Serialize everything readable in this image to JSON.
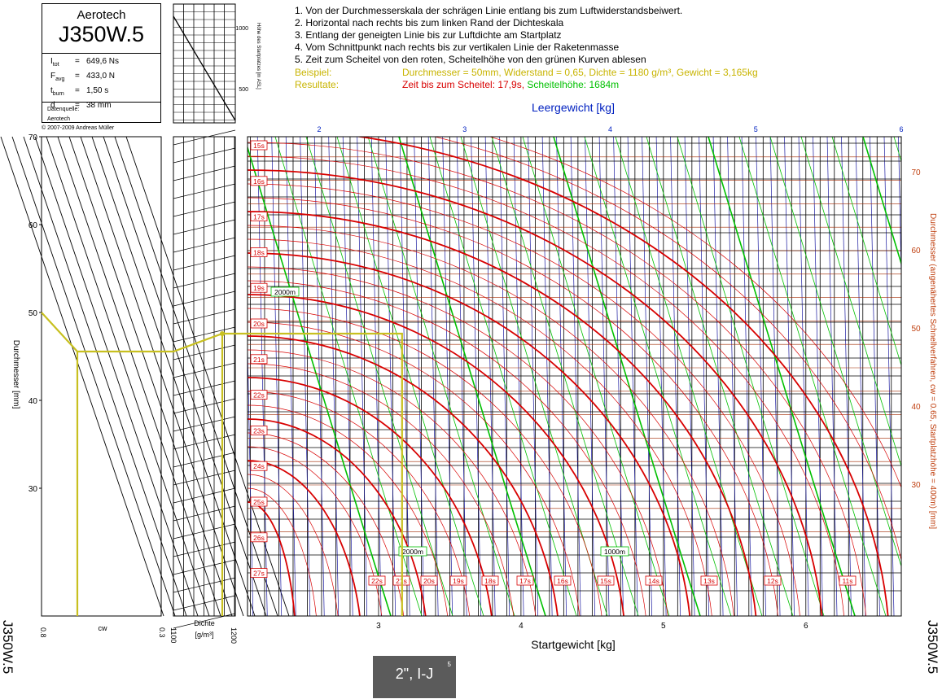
{
  "motor": {
    "manufacturer": "Aerotech",
    "designation": "J350W.5",
    "specs": [
      {
        "sym": "I",
        "sub": "tot",
        "value": "649,6 Ns"
      },
      {
        "sym": "F",
        "sub": "avg",
        "value": "433,0 N"
      },
      {
        "sym": "t",
        "sub": "burn",
        "value": "1,50 s"
      },
      {
        "sym": "d",
        "sub": "",
        "value": "38 mm"
      }
    ],
    "source_label": "Datenquelle:",
    "source": "Aerotech",
    "copyright": "© 2007-2009 Andreas Müller"
  },
  "instructions": [
    "1. Von der Durchmesserskala der schrägen Linie entlang bis zum Luftwiderstandsbeiwert.",
    "2. Horizontal nach rechts bis zum linken Rand der Dichteskala",
    "3. Entlang der geneigten Linie bis zur Luftdichte am Startplatz",
    "4. Vom Schnittpunkt nach rechts bis zur vertikalen Linie der Raketenmasse",
    "5. Zeit zum Scheitel von den roten, Scheitelhöhe von den grünen Kurven ablesen"
  ],
  "example": {
    "label": "Beispiel:",
    "text": "Durchmesser = 50mm, Widerstand = 0,65, Dichte = 1180 g/m³, Gewicht = 3,165kg",
    "results_label": "Resultate:",
    "time_text": "Zeit bis zum Scheitel: 17,9s,",
    "height_text": "Scheitelhöhe: 1684m"
  },
  "colors": {
    "time_curves": "#d80000",
    "height_curves": "#00c000",
    "empty_weight_lines": "#1a1aa0",
    "example_path": "#c8c020",
    "example_text": "#c8b400",
    "right_axis": "#c04010",
    "top_axis_title": "#0020c0"
  },
  "badge": {
    "text": "2\", I-J",
    "page": "5"
  },
  "chart_data": {
    "type": "nomogram",
    "diameter_scale": {
      "label": "Durchmesser [mm]",
      "ticks": [
        70,
        60,
        50,
        40,
        30
      ],
      "range": [
        20,
        70
      ]
    },
    "cw_scale": {
      "label": "cw",
      "range": [
        0.8,
        0.3
      ],
      "tick_labels": [
        "0.8",
        "0.3"
      ]
    },
    "density_scale": {
      "label": "Dichte",
      "unit": "[g/m³]",
      "tick_labels": [
        "1100",
        "1200"
      ]
    },
    "altitude_scale": {
      "label": "Höhe des Startplatzes [m ASL]",
      "ticks": [
        1000,
        500
      ]
    },
    "main": {
      "xlabel": "Startgewicht [kg]",
      "xlim": [
        2.08,
        6.67
      ],
      "x_ticks": [
        3,
        4,
        5,
        6
      ],
      "top_label": "Leergewicht [kg]",
      "top_ticks": [
        2,
        3,
        4,
        5,
        6
      ],
      "right_label": "Durchmesser (angenähertes Schnellverfahren, cw = 0.65, Startplatzhöhe = 400m) [mm]",
      "right_ticks": [
        70,
        60,
        50,
        40,
        30
      ],
      "time_curve_labels": [
        "15s",
        "16s",
        "17s",
        "18s",
        "19s",
        "20s",
        "21s",
        "22s",
        "23s",
        "24s",
        "25s",
        "26s",
        "27s"
      ],
      "time_curve_bottom_labels": [
        "22s",
        "21s",
        "20s",
        "19s",
        "18s",
        "17s",
        "16s",
        "15s",
        "14s",
        "13s",
        "12s",
        "11s"
      ],
      "height_curve_labels": [
        "2000m",
        "2000m",
        "1000m"
      ]
    },
    "example_path": {
      "diameter_mm": 50,
      "cw": 0.65,
      "density_g_m3": 1180,
      "mass_kg": 3.165,
      "result_time_s": 17.9,
      "result_height_m": 1684
    }
  },
  "side_label": "J350W.5"
}
